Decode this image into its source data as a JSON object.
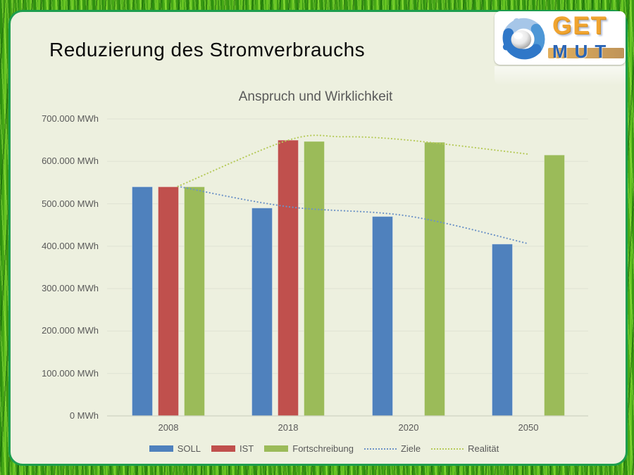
{
  "slide": {
    "title": "Reduzierung des Stromverbrauchs"
  },
  "logo": {
    "get": "GET",
    "mut": "MUT",
    "icon": "globe-puzzle-icon"
  },
  "colors": {
    "slide_background": "#edf0df",
    "slide_border": "#1d9e4d",
    "bar_blue": "#4f81bd",
    "bar_red": "#c0504d",
    "bar_green": "#9bbb59",
    "dotted_blue": "#6d93c6",
    "dotted_green": "#b6ca5a",
    "gridline": "#dfe2d3",
    "axis_line": "#cfd3c2",
    "axis_text": "#595959",
    "logo_gold": "#f0a430",
    "logo_blue": "#2a64b4"
  },
  "chart_data": {
    "type": "bar",
    "title": "Anspruch und Wirklichkeit",
    "unit": "MWh",
    "categories": [
      "2008",
      "2018",
      "2020",
      "2050"
    ],
    "y_ticks": [
      "700.000 MWh",
      "600.000 MWh",
      "500.000 MWh",
      "400.000 MWh",
      "300.000 MWh",
      "200.000 MWh",
      "100.000 MWh",
      "0 MWh"
    ],
    "ylim": [
      0,
      700000
    ],
    "y_step": 100000,
    "grid": true,
    "legend_position": "bottom",
    "series": [
      {
        "name": "SOLL",
        "kind": "bar",
        "color": "#4f81bd",
        "values": [
          540000,
          490000,
          470000,
          405000
        ]
      },
      {
        "name": "IST",
        "kind": "bar",
        "color": "#c0504d",
        "values": [
          540000,
          650000,
          null,
          null
        ]
      },
      {
        "name": "Fortschreibung",
        "kind": "bar",
        "color": "#9bbb59",
        "values": [
          540000,
          647000,
          645000,
          615000
        ]
      },
      {
        "name": "Ziele",
        "kind": "dotted-trend",
        "color": "#6d93c6",
        "points": [
          [
            0.08,
            541000
          ],
          [
            1,
            493000
          ],
          [
            2,
            471000
          ],
          [
            3,
            406000
          ]
        ]
      },
      {
        "name": "Realität",
        "kind": "dotted-trend",
        "color": "#b6ca5a",
        "points": [
          [
            0.08,
            541000
          ],
          [
            1,
            650000
          ],
          [
            1.45,
            658000
          ],
          [
            2,
            650000
          ],
          [
            3,
            617000
          ]
        ]
      }
    ]
  }
}
